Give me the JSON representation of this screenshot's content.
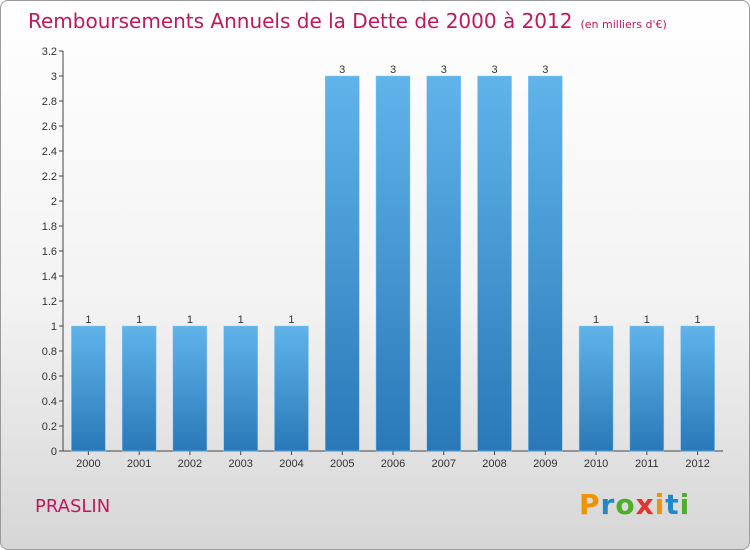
{
  "header": {
    "title": "Remboursements Annuels de la Dette de 2000 à 2012",
    "unit": "(en milliers d'€)"
  },
  "footer": {
    "commune": "PRASLIN",
    "logo": {
      "letters": [
        "P",
        "r",
        "o",
        "x",
        "i",
        "t",
        "i"
      ],
      "colors": [
        "#f39200",
        "#1e88c8",
        "#4caf2b",
        "#e3342f",
        "#f39200",
        "#1e88c8",
        "#4caf2b"
      ]
    }
  },
  "colors": {
    "bar_top": "#60b4ea",
    "bar_bottom": "#2a78b8",
    "title": "#c2185b"
  },
  "chart_data": {
    "type": "bar",
    "title": "Remboursements Annuels de la Dette de 2000 à 2012",
    "subtitle": "(en milliers d'€)",
    "categories": [
      "2000",
      "2001",
      "2002",
      "2003",
      "2004",
      "2005",
      "2006",
      "2007",
      "2008",
      "2009",
      "2010",
      "2011",
      "2012"
    ],
    "values": [
      1,
      1,
      1,
      1,
      1,
      3,
      3,
      3,
      3,
      3,
      1,
      1,
      1
    ],
    "data_labels": [
      "1",
      "1",
      "1",
      "1",
      "1",
      "3",
      "3",
      "3",
      "3",
      "3",
      "1",
      "1",
      "1"
    ],
    "ylim": [
      0,
      3.2
    ],
    "yticks": [
      "0",
      "0.2",
      "0.4",
      "0.6",
      "0.8",
      "1",
      "1.2",
      "1.4",
      "1.6",
      "1.8",
      "2",
      "2.2",
      "2.4",
      "2.6",
      "2.8",
      "3",
      "3.2"
    ],
    "ytick_values": [
      0,
      0.2,
      0.4,
      0.6,
      0.8,
      1,
      1.2,
      1.4,
      1.6,
      1.8,
      2,
      2.2,
      2.4,
      2.6,
      2.8,
      3,
      3.2
    ],
    "xlabel": "",
    "ylabel": "",
    "grid": false,
    "legend": "none"
  }
}
